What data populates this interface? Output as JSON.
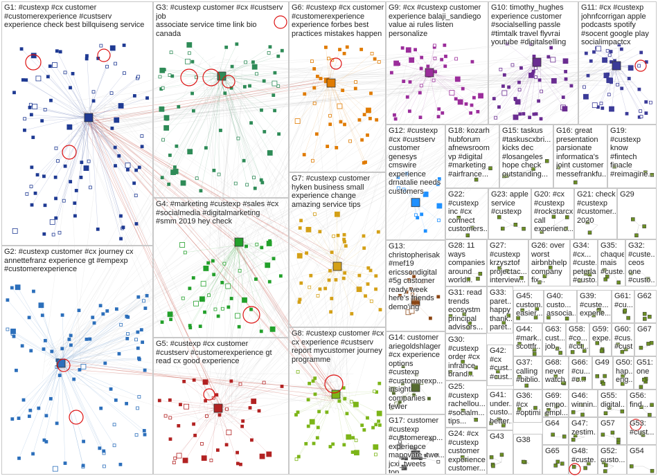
{
  "groups": [
    {
      "id": "G1",
      "label": "G1: #custexp #cx customer\n#customerexperience #custserv\nexperience check best billquiseng service",
      "color": "#1f3a93"
    },
    {
      "id": "G2",
      "label": "G2: #custexp customer #cx journey cx\nannettefranz experience gt #empexp\n#customerexperience",
      "color": "#2c6fbb"
    },
    {
      "id": "G3",
      "label": "G3: #custexp customer #cx #custserv job\nassociate service time link bio\ncanada",
      "color": "#2e8b57"
    },
    {
      "id": "G4",
      "label": "G4: #marketing #custexp #sales #cx\n#socialmedia #digitalmarketing\n#smm 2019 hey check",
      "color": "#22a02a"
    },
    {
      "id": "G5",
      "label": "G5: #custexp #cx customer\n#custserv #customerexperience gt\nread cx good experience",
      "color": "#b22222"
    },
    {
      "id": "G6",
      "label": "G6: #custexp #cx customer\n#customerexperience\nexperience forbes best\npractices mistakes happen",
      "color": "#e07b00"
    },
    {
      "id": "G7",
      "label": "G7: #custexp customer\nhyken business small\nexperience change\namazing service tips",
      "color": "#d4a017"
    },
    {
      "id": "G8",
      "label": "G8: #custexp customer #cx\ncx experience #custserv\nreport mycustomer journey\nprogramme",
      "color": "#7cb518"
    },
    {
      "id": "G9",
      "label": "G9: #cx #custexp customer\nexperience balaji_sandiego\nvalue ai rules listen\npersonalize",
      "color": "#9b2d9b"
    },
    {
      "id": "G10",
      "label": "G10: timothy_hughes\nexperience customer\n#socialselling passle\n#timtalk travel flyvrai\nyoutube #digitalselling",
      "color": "#6a2c91"
    },
    {
      "id": "G11",
      "label": "G11: #cx #custexp\njohnfcorrigan apple\npodcasts spotify\n#socent google play\nsocialimpactcx",
      "color": "#3b3b98"
    },
    {
      "id": "G12",
      "label": "G12: #custexp\n#cx #custserv\ncustomer\ngenesys\ncmswire\nexperience\ndrnatalie needs\ncustomers",
      "color": "#1e90ff"
    },
    {
      "id": "G13",
      "label": "G13:\nchristopherisak\n#mef19\nericssondigital\n#5g customer\nready week\nhere's friends\ndemo'ing",
      "color": "#8b4513"
    },
    {
      "id": "G14",
      "label": "G14: customer\nariegoldshlager\n#cx experience\noptions\n#custexp\n#customerexp...\ninsight\ncompanies\nfewer",
      "color": "#556b2f"
    },
    {
      "id": "G15",
      "label": "G15: taskus\n#taskuscxbri...\nkicks dec\n#losangeles\nhope check\noutstanding...",
      "color": "#444"
    },
    {
      "id": "G16",
      "label": "G16: great\npresentation\nparsionate\ninformatica's\njoint customer\nmessefrankfu...",
      "color": "#444"
    },
    {
      "id": "G17",
      "label": "G17: customer\n#custexp\n#customerexp...\nexperience\nmapovate_twe...\njcxi_tweets top...",
      "color": "#444"
    },
    {
      "id": "G18",
      "label": "G18: kozarh\nhubforum\nafnewsroom\nvp #digital\n#marketing\n#airfrance...",
      "color": "#444"
    },
    {
      "id": "G19",
      "label": "G19:\n#custexp\nknow\n#fintech\nfinacle\n#reimagine...",
      "color": "#444"
    },
    {
      "id": "G20",
      "label": "G20: #cx\n#custexp\n#rockstarcx\ncall\nexperienc...",
      "color": "#444"
    },
    {
      "id": "G21",
      "label": "G21: check\n#custexp\n#customer...\n2020",
      "color": "#444"
    },
    {
      "id": "G22",
      "label": "G22:\n#custexp\ninc #cx\nconnect\ncustomers...",
      "color": "#444"
    },
    {
      "id": "G23",
      "label": "G23: apple\nservice\n#custexp",
      "color": "#444"
    },
    {
      "id": "G24",
      "label": "G24: #cx\n#custexp\ncustomer\nexperience\ncustomer...",
      "color": "#444"
    },
    {
      "id": "G25",
      "label": "G25:\n#custexp\nrachellou...\n#socialm...\ntips...",
      "color": "#444"
    },
    {
      "id": "G26",
      "label": "G26: over\nworst\nairbnbhelp\ncompany\nfix...",
      "color": "#444"
    },
    {
      "id": "G27",
      "label": "G27:\n#custexp\nkrzysztof\nprojectac...\ninterview...",
      "color": "#444"
    },
    {
      "id": "G28",
      "label": "G28: 11\nways\ncompanies\naround\nworld...",
      "color": "#444"
    },
    {
      "id": "G29",
      "label": "G29",
      "color": "#444"
    },
    {
      "id": "G30",
      "label": "G30:\n#custexp\norder #cx\ninfrance\nbrand...",
      "color": "#444"
    },
    {
      "id": "G31",
      "label": "G31: read\ntrends\necosystm\nprincipal\nadvisors...",
      "color": "#444"
    },
    {
      "id": "G32",
      "label": "G32:\n#custe...\nceos\none\n#custo...",
      "color": "#444"
    },
    {
      "id": "G33",
      "label": "G33:\nparet...\nhappy\nthank...\nparet...\nteam...",
      "color": "#444"
    },
    {
      "id": "G34",
      "label": "G34:\n#cx...\n#custe...\npeterla...\n#custo...",
      "color": "#444"
    },
    {
      "id": "G35",
      "label": "G35:\nchaque\nmais\n#custe...",
      "color": "#444"
    },
    {
      "id": "G36",
      "label": "G36:\n#cx\n#optimi...",
      "color": "#444"
    },
    {
      "id": "G37",
      "label": "G37:\ncalling\n#biblio...",
      "color": "#444"
    },
    {
      "id": "G38",
      "label": "G38",
      "color": "#444"
    },
    {
      "id": "G39",
      "label": "G39:\n#custe...\nexperie...",
      "color": "#444"
    },
    {
      "id": "G40",
      "label": "G40:\ncusto...\nassocia...",
      "color": "#444"
    },
    {
      "id": "G41",
      "label": "G41:\nunder...\ncusto...\nbetter...",
      "color": "#444"
    },
    {
      "id": "G42",
      "label": "G42:\n#cx\n#cust...\n#cust...",
      "color": "#444"
    },
    {
      "id": "G43",
      "label": "G43",
      "color": "#444"
    },
    {
      "id": "G44",
      "label": "G44:\n#mark...\nscottfr...",
      "color": "#444"
    },
    {
      "id": "G45",
      "label": "G45:\ncustom...\neasier...",
      "color": "#444"
    },
    {
      "id": "G46",
      "label": "G46:\nwinnin...",
      "color": "#444"
    },
    {
      "id": "G47",
      "label": "G47:\nzestim...",
      "color": "#444"
    },
    {
      "id": "G48",
      "label": "G48:\n#custe...",
      "color": "#444"
    },
    {
      "id": "G49",
      "label": "G49",
      "color": "#444"
    },
    {
      "id": "G50",
      "label": "G50:\nhap...\neng...",
      "color": "#444"
    },
    {
      "id": "G51",
      "label": "G51:\none",
      "color": "#444"
    },
    {
      "id": "G52",
      "label": "G52:\ncusto...",
      "color": "#444"
    },
    {
      "id": "G53",
      "label": "G53:\n#cust...",
      "color": "#444"
    },
    {
      "id": "G54",
      "label": "G54",
      "color": "#444"
    },
    {
      "id": "G55",
      "label": "G55:\ndigital...",
      "color": "#444"
    },
    {
      "id": "G56",
      "label": "G56:\nfind...",
      "color": "#444"
    },
    {
      "id": "G57",
      "label": "G57",
      "color": "#444"
    },
    {
      "id": "G58",
      "label": "G58:\n#co...\n#cct...",
      "color": "#444"
    },
    {
      "id": "G59",
      "label": "G59:\nexpe...",
      "color": "#444"
    },
    {
      "id": "G60",
      "label": "G60:\n#cus...\n#cust...",
      "color": "#444"
    },
    {
      "id": "G61",
      "label": "G61:\n#cu...",
      "color": "#444"
    },
    {
      "id": "G62",
      "label": "G62",
      "color": "#444"
    },
    {
      "id": "G63",
      "label": "G63:\ncust...\njob...",
      "color": "#444"
    },
    {
      "id": "G64",
      "label": "G64",
      "color": "#444"
    },
    {
      "id": "G65",
      "label": "G65",
      "color": "#444"
    },
    {
      "id": "G66",
      "label": "G66:\n#cu...\n#c...",
      "color": "#444"
    },
    {
      "id": "G67",
      "label": "G67",
      "color": "#444"
    },
    {
      "id": "G68",
      "label": "G68:\nnever\nwatch",
      "color": "#444"
    },
    {
      "id": "G69",
      "label": "G69:\nempo...\nempl...",
      "color": "#444"
    }
  ]
}
